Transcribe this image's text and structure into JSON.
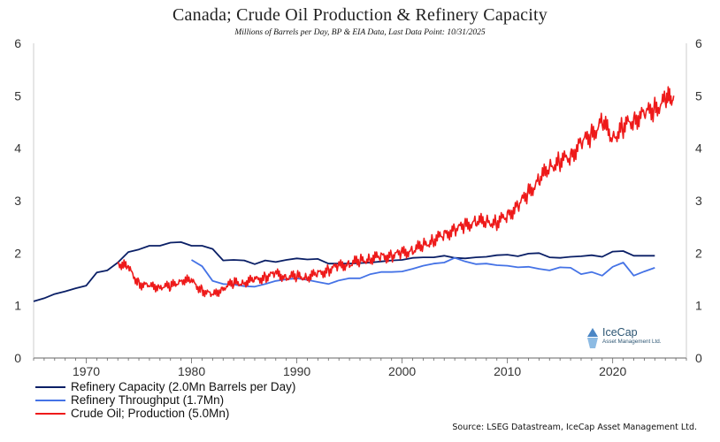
{
  "chart_data": {
    "type": "line",
    "title": "Canada; Crude Oil Production & Refinery Capacity",
    "subtitle": "Millions of Barrels per Day, BP & EIA Data, Last Data Point: 10/31/2025",
    "xlabel": "",
    "ylabel": "",
    "xlim": [
      1965,
      2027
    ],
    "ylim": [
      0,
      6
    ],
    "yticks": [
      0,
      1,
      2,
      3,
      4,
      5,
      6
    ],
    "xticks": [
      1970,
      1980,
      1990,
      2000,
      2010,
      2020
    ],
    "grid": false,
    "legend_position": "bottom-left",
    "series": [
      {
        "name": "Refinery Capacity (2.0Mn Barrels per Day)",
        "color": "#0a1f66",
        "x": [
          1965,
          1966,
          1967,
          1968,
          1969,
          1970,
          1971,
          1972,
          1973,
          1974,
          1975,
          1976,
          1977,
          1978,
          1979,
          1980,
          1981,
          1982,
          1983,
          1984,
          1985,
          1986,
          1987,
          1988,
          1989,
          1990,
          1991,
          1992,
          1993,
          1994,
          1995,
          1996,
          1997,
          1998,
          1999,
          2000,
          2001,
          2002,
          2003,
          2004,
          2005,
          2006,
          2007,
          2008,
          2009,
          2010,
          2011,
          2012,
          2013,
          2014,
          2015,
          2016,
          2017,
          2018,
          2019,
          2020,
          2021,
          2022,
          2023,
          2024
        ],
        "values": [
          1.08,
          1.14,
          1.22,
          1.27,
          1.33,
          1.38,
          1.63,
          1.67,
          1.82,
          2.02,
          2.07,
          2.14,
          2.14,
          2.2,
          2.21,
          2.14,
          2.14,
          2.08,
          1.86,
          1.87,
          1.86,
          1.79,
          1.86,
          1.83,
          1.87,
          1.9,
          1.88,
          1.89,
          1.8,
          1.8,
          1.8,
          1.81,
          1.82,
          1.84,
          1.86,
          1.87,
          1.91,
          1.92,
          1.92,
          1.95,
          1.91,
          1.9,
          1.92,
          1.93,
          1.96,
          1.97,
          1.94,
          1.99,
          2.0,
          1.92,
          1.91,
          1.93,
          1.94,
          1.96,
          1.93,
          2.03,
          2.04,
          1.95,
          1.95,
          1.95
        ]
      },
      {
        "name": "Refinery Throughput (1.7Mn)",
        "color": "#4573e6",
        "x": [
          1980,
          1981,
          1982,
          1983,
          1984,
          1985,
          1986,
          1987,
          1988,
          1989,
          1990,
          1991,
          1992,
          1993,
          1994,
          1995,
          1996,
          1997,
          1998,
          1999,
          2000,
          2001,
          2002,
          2003,
          2004,
          2005,
          2006,
          2007,
          2008,
          2009,
          2010,
          2011,
          2012,
          2013,
          2014,
          2015,
          2016,
          2017,
          2018,
          2019,
          2020,
          2021,
          2022,
          2023,
          2024
        ],
        "values": [
          1.87,
          1.75,
          1.47,
          1.41,
          1.4,
          1.37,
          1.36,
          1.41,
          1.47,
          1.5,
          1.52,
          1.49,
          1.45,
          1.41,
          1.48,
          1.52,
          1.52,
          1.6,
          1.64,
          1.64,
          1.65,
          1.7,
          1.76,
          1.8,
          1.82,
          1.91,
          1.84,
          1.79,
          1.8,
          1.77,
          1.76,
          1.73,
          1.74,
          1.7,
          1.67,
          1.73,
          1.72,
          1.6,
          1.64,
          1.57,
          1.74,
          1.82,
          1.57,
          1.65,
          1.72
        ]
      },
      {
        "name": "Crude Oil; Production (5.0Mn)",
        "color": "#ee1a1a",
        "x": [
          1973,
          1974,
          1975,
          1976,
          1977,
          1978,
          1979,
          1980,
          1981,
          1982,
          1983,
          1984,
          1985,
          1986,
          1987,
          1988,
          1989,
          1990,
          1991,
          1992,
          1993,
          1994,
          1995,
          1996,
          1997,
          1998,
          1999,
          2000,
          2001,
          2002,
          2003,
          2004,
          2005,
          2006,
          2007,
          2008,
          2009,
          2010,
          2011,
          2012,
          2013,
          2014,
          2015,
          2016,
          2017,
          2018,
          2019,
          2020,
          2021,
          2022,
          2023,
          2024,
          2025,
          2025.8
        ],
        "values": [
          1.83,
          1.7,
          1.43,
          1.35,
          1.38,
          1.35,
          1.5,
          1.45,
          1.3,
          1.18,
          1.35,
          1.42,
          1.45,
          1.48,
          1.55,
          1.6,
          1.55,
          1.55,
          1.55,
          1.6,
          1.68,
          1.75,
          1.8,
          1.85,
          1.9,
          1.93,
          1.95,
          2.0,
          2.05,
          2.15,
          2.25,
          2.35,
          2.45,
          2.52,
          2.6,
          2.6,
          2.58,
          2.72,
          2.9,
          3.15,
          3.38,
          3.65,
          3.75,
          3.85,
          4.1,
          4.25,
          4.5,
          4.2,
          4.4,
          4.55,
          4.65,
          4.75,
          4.9,
          5.0
        ]
      }
    ]
  },
  "source": "Source: LSEG Datastream, IceCap Asset Management Ltd.",
  "logo": {
    "name": "IceCap",
    "tagline": "Asset Management Ltd."
  }
}
